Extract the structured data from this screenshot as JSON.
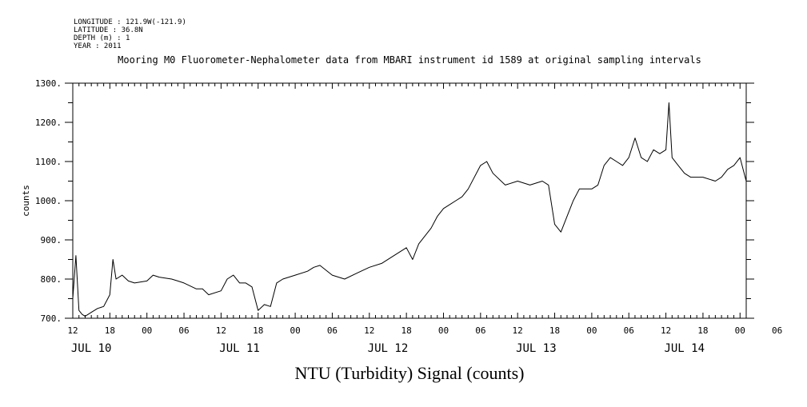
{
  "meta": {
    "longitude": "LONGITUDE : 121.9W(-121.9)",
    "latitude": "LATITUDE : 36.8N",
    "depth": "DEPTH (m) : 1",
    "year": "YEAR : 2011"
  },
  "chart_data": {
    "type": "line",
    "title": "Mooring M0 Fluorometer-Nephalometer data from MBARI instrument id 1589 at original sampling intervals",
    "xlabel": "NTU (Turbidity) Signal (counts)",
    "ylabel": "counts",
    "ylim": [
      700,
      1300
    ],
    "yticks": [
      "700.",
      "800.",
      "900.",
      "1000.",
      "1100.",
      "1200.",
      "1300."
    ],
    "xlim": [
      "2011-07-10T12:00",
      "2011-07-15T01:00"
    ],
    "hour_ticks": [
      "12",
      "18",
      "00",
      "06",
      "12",
      "18",
      "00",
      "06",
      "12",
      "18",
      "00",
      "06",
      "12",
      "18",
      "00",
      "06",
      "12",
      "18",
      "00",
      "06",
      "12",
      "18",
      "00"
    ],
    "day_labels": [
      "JUL 10",
      "JUL 11",
      "JUL 12",
      "JUL 13",
      "JUL 14"
    ],
    "grid": false,
    "series": [
      {
        "x": [
          "2011-07-10T12:00",
          "2011-07-10T12:30",
          "2011-07-10T13:00",
          "2011-07-10T13:30",
          "2011-07-10T14:00",
          "2011-07-10T15:00",
          "2011-07-10T16:00",
          "2011-07-10T17:00",
          "2011-07-10T18:00",
          "2011-07-10T18:30",
          "2011-07-10T19:00",
          "2011-07-10T20:00",
          "2011-07-10T21:00",
          "2011-07-10T22:00",
          "2011-07-11T00:00",
          "2011-07-11T01:00",
          "2011-07-11T02:00",
          "2011-07-11T04:00",
          "2011-07-11T05:00",
          "2011-07-11T06:00",
          "2011-07-11T08:00",
          "2011-07-11T09:00",
          "2011-07-11T10:00",
          "2011-07-11T12:00",
          "2011-07-11T13:00",
          "2011-07-11T14:00",
          "2011-07-11T15:00",
          "2011-07-11T16:00",
          "2011-07-11T17:00",
          "2011-07-11T18:00",
          "2011-07-11T19:00",
          "2011-07-11T20:00",
          "2011-07-11T21:00",
          "2011-07-11T22:00",
          "2011-07-12T00:00",
          "2011-07-12T02:00",
          "2011-07-12T03:00",
          "2011-07-12T04:00",
          "2011-07-12T06:00",
          "2011-07-12T08:00",
          "2011-07-12T10:00",
          "2011-07-12T12:00",
          "2011-07-12T14:00",
          "2011-07-12T16:00",
          "2011-07-12T17:00",
          "2011-07-12T18:00",
          "2011-07-12T19:00",
          "2011-07-12T20:00",
          "2011-07-12T22:00",
          "2011-07-12T23:00",
          "2011-07-13T00:00",
          "2011-07-13T02:00",
          "2011-07-13T03:00",
          "2011-07-13T04:00",
          "2011-07-13T06:00",
          "2011-07-13T07:00",
          "2011-07-13T08:00",
          "2011-07-13T10:00",
          "2011-07-13T12:00",
          "2011-07-13T14:00",
          "2011-07-13T16:00",
          "2011-07-13T17:00",
          "2011-07-13T18:00",
          "2011-07-13T19:00",
          "2011-07-13T20:00",
          "2011-07-13T21:00",
          "2011-07-13T22:00",
          "2011-07-14T00:00",
          "2011-07-14T01:00",
          "2011-07-14T02:00",
          "2011-07-14T03:00",
          "2011-07-14T04:00",
          "2011-07-14T05:00",
          "2011-07-14T06:00",
          "2011-07-14T07:00",
          "2011-07-14T08:00",
          "2011-07-14T09:00",
          "2011-07-14T10:00",
          "2011-07-14T11:00",
          "2011-07-14T12:00",
          "2011-07-14T12:30",
          "2011-07-14T13:00",
          "2011-07-14T14:00",
          "2011-07-14T15:00",
          "2011-07-14T16:00",
          "2011-07-14T18:00",
          "2011-07-14T20:00",
          "2011-07-14T21:00",
          "2011-07-14T22:00",
          "2011-07-14T23:00",
          "2011-07-15T00:00",
          "2011-07-15T00:30",
          "2011-07-15T01:00"
        ],
        "values": [
          750,
          860,
          720,
          710,
          705,
          715,
          725,
          730,
          760,
          850,
          800,
          810,
          795,
          790,
          795,
          810,
          805,
          800,
          795,
          790,
          775,
          775,
          760,
          770,
          800,
          810,
          790,
          790,
          780,
          720,
          735,
          730,
          790,
          800,
          810,
          820,
          830,
          835,
          810,
          800,
          815,
          830,
          840,
          860,
          870,
          880,
          850,
          890,
          930,
          960,
          980,
          1000,
          1010,
          1030,
          1090,
          1100,
          1070,
          1040,
          1050,
          1040,
          1050,
          1040,
          940,
          920,
          960,
          1000,
          1030,
          1030,
          1040,
          1090,
          1110,
          1100,
          1090,
          1110,
          1160,
          1110,
          1100,
          1130,
          1120,
          1130,
          1250,
          1110,
          1090,
          1070,
          1060,
          1060,
          1050,
          1060,
          1080,
          1090,
          1110,
          1080,
          1050
        ]
      }
    ]
  }
}
